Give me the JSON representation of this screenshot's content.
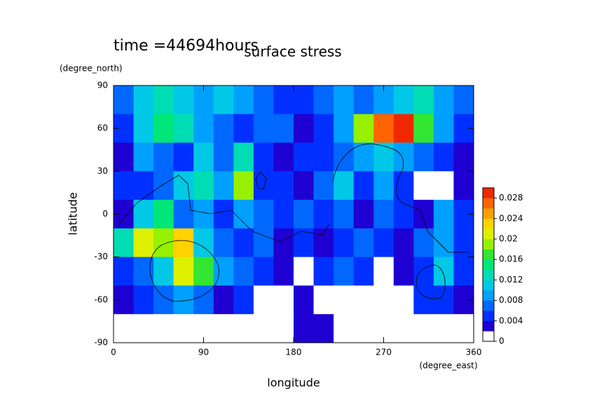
{
  "chart_data": {
    "type": "contour",
    "title": "surface stress",
    "time_label": "time =44694hours",
    "x_label": "longitude",
    "x_units": "(degree_east)",
    "y_label": "latitude",
    "y_units": "(degree_north)",
    "xlim": [
      0,
      360
    ],
    "xticks": [
      0,
      90,
      180,
      270,
      360
    ],
    "ylim": [
      -90,
      90
    ],
    "yticks": [
      -90,
      -60,
      -30,
      0,
      30,
      60,
      90
    ],
    "x": [
      10,
      30,
      50,
      70,
      90,
      110,
      130,
      150,
      170,
      190,
      210,
      230,
      250,
      270,
      290,
      310,
      330,
      350
    ],
    "y": [
      80,
      60,
      40,
      20,
      0,
      -20,
      -40,
      -60,
      -80
    ],
    "z": [
      [
        0.006,
        0.01,
        0.012,
        0.01,
        0.008,
        0.01,
        0.008,
        0.006,
        0.004,
        0.004,
        0.006,
        0.008,
        0.006,
        0.008,
        0.01,
        0.012,
        0.008,
        0.006
      ],
      [
        0.004,
        0.01,
        0.014,
        0.012,
        0.008,
        0.006,
        0.004,
        0.006,
        0.006,
        0.002,
        0.004,
        0.008,
        0.018,
        0.026,
        0.028,
        0.016,
        0.008,
        0.004
      ],
      [
        0.002,
        0.008,
        0.006,
        0.004,
        0.01,
        0.006,
        0.012,
        0.004,
        0.002,
        0.004,
        0.004,
        0.006,
        0.008,
        0.01,
        0.008,
        0.006,
        0.004,
        0.002
      ],
      [
        0.004,
        0.004,
        0.006,
        0.01,
        0.012,
        0.008,
        0.018,
        0.004,
        0.004,
        0.002,
        0.006,
        0.01,
        0.004,
        0.008,
        0.004,
        0,
        0,
        0.002
      ],
      [
        0.002,
        0.01,
        0.014,
        0.006,
        0.008,
        0.004,
        0.008,
        0.006,
        0.004,
        0.006,
        0.004,
        0.006,
        0.002,
        0.006,
        0.004,
        0.002,
        0.008,
        0.004
      ],
      [
        0.012,
        0.02,
        0.018,
        0.022,
        0.01,
        0.006,
        0.004,
        0.006,
        0.002,
        0.004,
        0.002,
        0.004,
        0.006,
        0.004,
        0.002,
        0.006,
        0.008,
        0.004
      ],
      [
        0.004,
        0.006,
        0.01,
        0.02,
        0.016,
        0.008,
        0.006,
        0.004,
        0.002,
        0,
        0.004,
        0.006,
        0.004,
        0,
        0.002,
        0.004,
        0.01,
        0.004
      ],
      [
        0.002,
        0.004,
        0.006,
        0.008,
        0.006,
        0.002,
        0.004,
        0,
        0,
        0.002,
        0,
        0,
        0,
        0,
        0,
        0.004,
        0.004,
        0.002
      ],
      [
        0,
        0,
        0,
        0,
        0,
        0,
        0,
        0,
        0,
        0.002,
        0.002,
        0,
        0,
        0,
        0,
        0,
        0,
        0
      ]
    ],
    "zlim": [
      0,
      0.03
    ],
    "zticks": [
      0,
      0.004,
      0.008,
      0.012,
      0.016,
      0.02,
      0.024,
      0.028
    ],
    "colormap": [
      "#ffffff",
      "#1e00d2",
      "#0030ff",
      "#0068ff",
      "#00a0ff",
      "#00c8e6",
      "#00dcb4",
      "#00e678",
      "#32e632",
      "#96f000",
      "#dcf000",
      "#ffd200",
      "#ffa000",
      "#ff6400",
      "#f02800"
    ]
  }
}
